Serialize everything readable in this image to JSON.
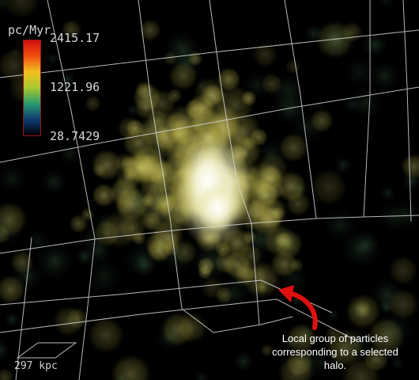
{
  "colorbar": {
    "unit_label": "pc/Myr",
    "max_label": "2415.17",
    "mid_label": "1221.96",
    "min_label": "28.7429",
    "gradient_colors": [
      "#d01010",
      "#f05010",
      "#f0c020",
      "#a8c830",
      "#2a9a70",
      "#103a70",
      "#000000"
    ]
  },
  "scale_bar": {
    "label": "297 kpc"
  },
  "annotation": {
    "text": "Local group of particles corresponding to a selected halo.",
    "arrow_color": "#e01010"
  },
  "colors": {
    "grid": "#d8d8d8",
    "particle_core": "#ffffff",
    "particle_glow": "#e8e070"
  }
}
